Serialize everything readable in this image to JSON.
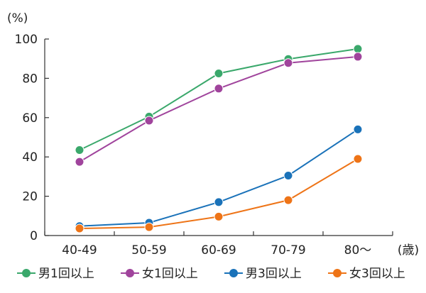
{
  "chart_data": {
    "type": "line",
    "y_unit_label": "(%)",
    "x_unit_label": "(歳)",
    "categories": [
      "40-49",
      "50-59",
      "60-69",
      "70-79",
      "80〜"
    ],
    "ylim": [
      0,
      100
    ],
    "yticks": [
      0,
      20,
      40,
      60,
      80,
      100
    ],
    "grid": false,
    "legend_placement": "bottom",
    "series": [
      {
        "name": "男1回以上",
        "color": "#3aa86b",
        "values": [
          43.5,
          60.5,
          82.5,
          89.8,
          95
        ]
      },
      {
        "name": "女1回以上",
        "color": "#a0449c",
        "values": [
          37.5,
          58.5,
          74.8,
          87.8,
          91
        ]
      },
      {
        "name": "男3回以上",
        "color": "#1a72b9",
        "values": [
          4.8,
          6.5,
          17,
          30.5,
          54
        ]
      },
      {
        "name": "女3回以上",
        "color": "#ee7417",
        "values": [
          3.6,
          4.3,
          9.6,
          18,
          39
        ]
      }
    ]
  }
}
